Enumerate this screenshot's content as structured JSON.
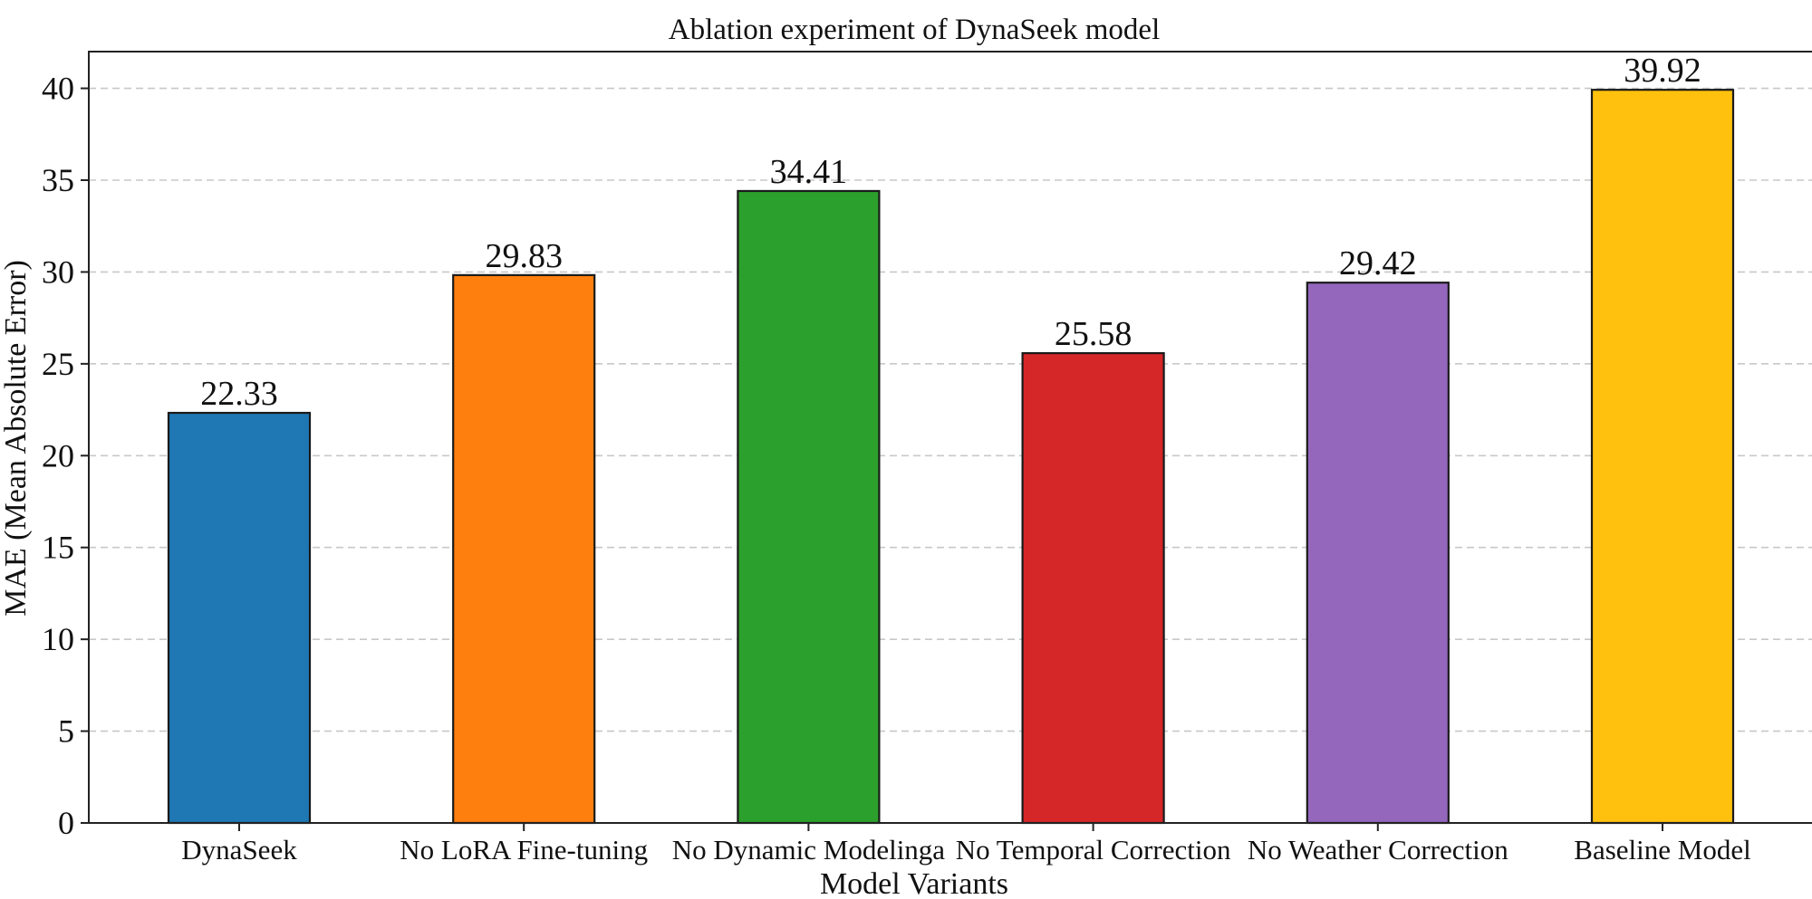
{
  "chart_data": {
    "type": "bar",
    "title": "Ablation experiment of DynaSeek model",
    "xlabel": "Model Variants",
    "ylabel": "MAE (Mean Absolute Error)",
    "categories": [
      "DynaSeek",
      "No LoRA Fine-tuning",
      "No Dynamic Modelinga",
      "No Temporal Correction",
      "No Weather Correction",
      "Baseline Model"
    ],
    "values": [
      22.33,
      29.83,
      34.41,
      25.58,
      29.42,
      39.92
    ],
    "value_labels": [
      "22.33",
      "29.83",
      "34.41",
      "25.58",
      "29.42",
      "39.92"
    ],
    "colors": [
      "#1f77b4",
      "#ff7f0e",
      "#2ca02c",
      "#d62728",
      "#9467bd",
      "#ffc10e"
    ],
    "ylim": [
      0,
      42
    ],
    "yticks": [
      0,
      5,
      10,
      15,
      20,
      25,
      30,
      35,
      40
    ],
    "grid": true,
    "grid_axis": "y"
  }
}
